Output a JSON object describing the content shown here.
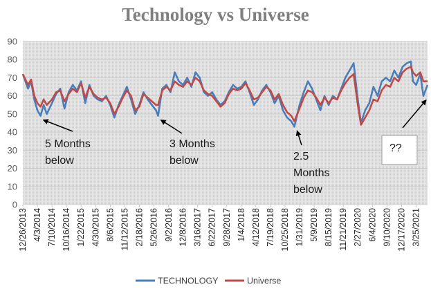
{
  "chart_data": {
    "type": "line",
    "title": "Technology vs Universe",
    "xlabel": "",
    "ylabel": "",
    "ylim": [
      0,
      90
    ],
    "yticks": [
      0,
      10,
      20,
      30,
      40,
      50,
      60,
      70,
      80,
      90
    ],
    "grid": true,
    "legend": "bottom",
    "x_start": "12/26/2013",
    "x_end": "6/10/2021",
    "x_tick_labels": [
      "12/26/2013",
      "4/3/2014",
      "7/10/2014",
      "10/16/2014",
      "1/22/2015",
      "4/30/2015",
      "8/6/2015",
      "11/12/2015",
      "2/18/2016",
      "5/26/2016",
      "9/2/2016",
      "12/8/2016",
      "3/16/2017",
      "6/22/2017",
      "9/28/2017",
      "1/4/2018",
      "4/12/2018",
      "7/19/2018",
      "10/25/2018",
      "1/31/2019",
      "5/9/2019",
      "8/15/2019",
      "11/21/2019",
      "2/27/2020",
      "6/4/2020",
      "9/10/2020",
      "12/17/2020",
      "3/25/2021"
    ],
    "series": [
      {
        "name": "TECHNOLOGY",
        "color": "#4a7ebb",
        "points": [
          [
            "12/26/2013",
            72
          ],
          [
            "1/30/2014",
            64
          ],
          [
            "2/20/2014",
            68
          ],
          [
            "3/13/2014",
            58
          ],
          [
            "4/3/2014",
            52
          ],
          [
            "4/24/2014",
            49
          ],
          [
            "5/15/2014",
            55
          ],
          [
            "6/5/2014",
            50
          ],
          [
            "7/10/2014",
            56
          ],
          [
            "8/7/2014",
            61
          ],
          [
            "9/4/2014",
            64
          ],
          [
            "10/2/2014",
            53
          ],
          [
            "10/30/2014",
            62
          ],
          [
            "11/27/2014",
            66
          ],
          [
            "12/25/2014",
            63
          ],
          [
            "1/22/2015",
            68
          ],
          [
            "2/19/2015",
            56
          ],
          [
            "3/19/2015",
            66
          ],
          [
            "4/16/2015",
            60
          ],
          [
            "5/14/2015",
            58
          ],
          [
            "6/11/2015",
            57
          ],
          [
            "7/9/2015",
            60
          ],
          [
            "8/6/2015",
            55
          ],
          [
            "9/3/2015",
            48
          ],
          [
            "10/1/2015",
            55
          ],
          [
            "10/29/2015",
            60
          ],
          [
            "11/26/2015",
            65
          ],
          [
            "12/24/2015",
            58
          ],
          [
            "1/21/2016",
            50
          ],
          [
            "2/18/2016",
            55
          ],
          [
            "3/17/2016",
            62
          ],
          [
            "4/14/2016",
            58
          ],
          [
            "5/12/2016",
            55
          ],
          [
            "6/9/2016",
            52
          ],
          [
            "6/23/2016",
            49
          ],
          [
            "7/21/2016",
            64
          ],
          [
            "8/18/2016",
            66
          ],
          [
            "9/15/2016",
            62
          ],
          [
            "10/13/2016",
            73
          ],
          [
            "11/10/2016",
            68
          ],
          [
            "12/8/2016",
            66
          ],
          [
            "1/5/2017",
            70
          ],
          [
            "2/2/2017",
            65
          ],
          [
            "3/2/2017",
            73
          ],
          [
            "3/30/2017",
            70
          ],
          [
            "4/27/2017",
            62
          ],
          [
            "5/25/2017",
            60
          ],
          [
            "6/22/2017",
            62
          ],
          [
            "7/20/2017",
            58
          ],
          [
            "8/17/2017",
            55
          ],
          [
            "9/14/2017",
            57
          ],
          [
            "10/12/2017",
            62
          ],
          [
            "11/9/2017",
            66
          ],
          [
            "12/7/2017",
            64
          ],
          [
            "1/4/2018",
            65
          ],
          [
            "2/1/2018",
            68
          ],
          [
            "3/1/2018",
            62
          ],
          [
            "3/29/2018",
            55
          ],
          [
            "4/26/2018",
            58
          ],
          [
            "5/24/2018",
            63
          ],
          [
            "6/21/2018",
            66
          ],
          [
            "7/19/2018",
            62
          ],
          [
            "8/16/2018",
            56
          ],
          [
            "9/13/2018",
            60
          ],
          [
            "10/11/2018",
            52
          ],
          [
            "11/8/2018",
            48
          ],
          [
            "12/6/2018",
            46
          ],
          [
            "12/27/2018",
            43
          ],
          [
            "1/31/2019",
            55
          ],
          [
            "2/28/2019",
            62
          ],
          [
            "3/28/2019",
            68
          ],
          [
            "4/25/2019",
            64
          ],
          [
            "5/23/2019",
            58
          ],
          [
            "6/20/2019",
            52
          ],
          [
            "7/18/2019",
            60
          ],
          [
            "8/15/2019",
            55
          ],
          [
            "9/12/2019",
            60
          ],
          [
            "10/10/2019",
            58
          ],
          [
            "11/7/2019",
            64
          ],
          [
            "12/5/2019",
            70
          ],
          [
            "1/2/2020",
            74
          ],
          [
            "1/30/2020",
            78
          ],
          [
            "2/27/2020",
            58
          ],
          [
            "3/19/2020",
            45
          ],
          [
            "4/16/2020",
            52
          ],
          [
            "5/14/2020",
            56
          ],
          [
            "6/11/2020",
            65
          ],
          [
            "7/9/2020",
            60
          ],
          [
            "8/6/2020",
            68
          ],
          [
            "9/3/2020",
            70
          ],
          [
            "10/1/2020",
            68
          ],
          [
            "10/29/2020",
            74
          ],
          [
            "11/26/2020",
            70
          ],
          [
            "12/24/2020",
            76
          ],
          [
            "1/21/2021",
            78
          ],
          [
            "2/18/2021",
            79
          ],
          [
            "3/4/2021",
            68
          ],
          [
            "3/25/2021",
            66
          ],
          [
            "4/22/2021",
            72
          ],
          [
            "5/13/2021",
            60
          ],
          [
            "6/10/2021",
            66
          ]
        ]
      },
      {
        "name": "Universe",
        "color": "#be4b48",
        "points": [
          [
            "12/26/2013",
            72
          ],
          [
            "1/30/2014",
            66
          ],
          [
            "2/20/2014",
            69
          ],
          [
            "3/13/2014",
            60
          ],
          [
            "4/3/2014",
            56
          ],
          [
            "4/24/2014",
            54
          ],
          [
            "5/15/2014",
            58
          ],
          [
            "6/5/2014",
            55
          ],
          [
            "7/10/2014",
            58
          ],
          [
            "8/7/2014",
            62
          ],
          [
            "9/4/2014",
            63
          ],
          [
            "10/2/2014",
            57
          ],
          [
            "10/30/2014",
            61
          ],
          [
            "11/27/2014",
            64
          ],
          [
            "12/25/2014",
            62
          ],
          [
            "1/22/2015",
            67
          ],
          [
            "2/19/2015",
            59
          ],
          [
            "3/19/2015",
            65
          ],
          [
            "4/16/2015",
            61
          ],
          [
            "5/14/2015",
            59
          ],
          [
            "6/11/2015",
            58
          ],
          [
            "7/9/2015",
            59
          ],
          [
            "8/6/2015",
            56
          ],
          [
            "9/3/2015",
            50
          ],
          [
            "10/1/2015",
            54
          ],
          [
            "10/29/2015",
            59
          ],
          [
            "11/26/2015",
            63
          ],
          [
            "12/24/2015",
            60
          ],
          [
            "1/21/2016",
            52
          ],
          [
            "2/18/2016",
            54
          ],
          [
            "3/17/2016",
            61
          ],
          [
            "4/14/2016",
            59
          ],
          [
            "5/12/2016",
            57
          ],
          [
            "6/9/2016",
            55
          ],
          [
            "6/23/2016",
            55
          ],
          [
            "7/21/2016",
            63
          ],
          [
            "8/18/2016",
            65
          ],
          [
            "9/15/2016",
            63
          ],
          [
            "10/13/2016",
            68
          ],
          [
            "11/10/2016",
            66
          ],
          [
            "12/8/2016",
            65
          ],
          [
            "1/5/2017",
            68
          ],
          [
            "2/2/2017",
            66
          ],
          [
            "3/2/2017",
            70
          ],
          [
            "3/30/2017",
            68
          ],
          [
            "4/27/2017",
            63
          ],
          [
            "5/25/2017",
            61
          ],
          [
            "6/22/2017",
            60
          ],
          [
            "7/20/2017",
            57
          ],
          [
            "8/17/2017",
            54
          ],
          [
            "9/14/2017",
            56
          ],
          [
            "10/12/2017",
            61
          ],
          [
            "11/9/2017",
            64
          ],
          [
            "12/7/2017",
            63
          ],
          [
            "1/4/2018",
            64
          ],
          [
            "2/1/2018",
            67
          ],
          [
            "3/1/2018",
            63
          ],
          [
            "3/29/2018",
            58
          ],
          [
            "4/26/2018",
            59
          ],
          [
            "5/24/2018",
            62
          ],
          [
            "6/21/2018",
            65
          ],
          [
            "7/19/2018",
            63
          ],
          [
            "8/16/2018",
            58
          ],
          [
            "9/13/2018",
            61
          ],
          [
            "10/11/2018",
            55
          ],
          [
            "11/8/2018",
            51
          ],
          [
            "12/6/2018",
            49
          ],
          [
            "12/27/2018",
            46
          ],
          [
            "1/31/2019",
            53
          ],
          [
            "2/28/2019",
            59
          ],
          [
            "3/28/2019",
            63
          ],
          [
            "4/25/2019",
            62
          ],
          [
            "5/23/2019",
            59
          ],
          [
            "6/20/2019",
            55
          ],
          [
            "7/18/2019",
            59
          ],
          [
            "8/15/2019",
            56
          ],
          [
            "9/12/2019",
            59
          ],
          [
            "10/10/2019",
            58
          ],
          [
            "11/7/2019",
            63
          ],
          [
            "12/5/2019",
            67
          ],
          [
            "1/2/2020",
            70
          ],
          [
            "1/30/2020",
            72
          ],
          [
            "2/27/2020",
            55
          ],
          [
            "3/19/2020",
            44
          ],
          [
            "4/16/2020",
            48
          ],
          [
            "5/14/2020",
            52
          ],
          [
            "6/11/2020",
            58
          ],
          [
            "7/9/2020",
            57
          ],
          [
            "8/6/2020",
            63
          ],
          [
            "9/3/2020",
            66
          ],
          [
            "10/1/2020",
            65
          ],
          [
            "10/29/2020",
            70
          ],
          [
            "11/26/2020",
            68
          ],
          [
            "12/24/2020",
            73
          ],
          [
            "1/21/2021",
            75
          ],
          [
            "2/18/2021",
            76
          ],
          [
            "3/4/2021",
            73
          ],
          [
            "3/25/2021",
            71
          ],
          [
            "4/22/2021",
            73
          ],
          [
            "5/13/2021",
            68
          ],
          [
            "6/10/2021",
            68
          ]
        ]
      }
    ],
    "annotations": [
      {
        "lines": [
          "5 Months",
          "below"
        ],
        "arrow_to": [
          "4/24/2014",
          49
        ]
      },
      {
        "lines": [
          "3 Months",
          "below"
        ],
        "arrow_to": [
          "6/23/2016",
          49
        ]
      },
      {
        "lines": [
          "2.5",
          "Months",
          "below"
        ],
        "arrow_to": [
          "12/27/2018",
          43
        ]
      },
      {
        "lines": [
          "??"
        ],
        "boxed": true,
        "arrow_to": [
          "5/13/2021",
          60
        ]
      }
    ]
  }
}
